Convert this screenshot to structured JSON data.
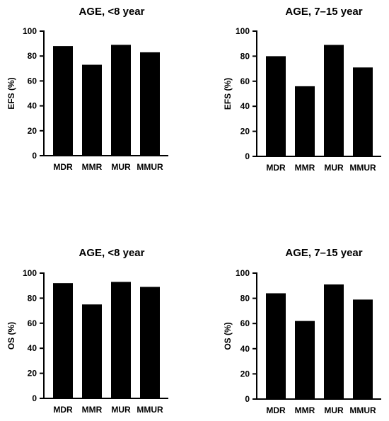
{
  "chart_data": [
    {
      "type": "bar",
      "title": "AGE, <8 year",
      "xlabel": "",
      "ylabel": "EFS (%)",
      "categories": [
        "MDR",
        "MMR",
        "MUR",
        "MMUR"
      ],
      "values": [
        88,
        73,
        89,
        83
      ],
      "ylim": [
        0,
        100
      ],
      "yticks": [
        "0",
        "20",
        "40",
        "60",
        "80",
        "100"
      ],
      "grid": false,
      "bar_color": "#000000"
    },
    {
      "type": "bar",
      "title": "AGE, 7–15 year",
      "xlabel": "",
      "ylabel": "EFS (%)",
      "categories": [
        "MDR",
        "MMR",
        "MUR",
        "MMUR"
      ],
      "values": [
        80,
        56,
        89,
        71
      ],
      "ylim": [
        0,
        100
      ],
      "yticks": [
        "0",
        "20",
        "40",
        "60",
        "80",
        "100"
      ],
      "grid": false,
      "bar_color": "#000000"
    },
    {
      "type": "bar",
      "title": "AGE, <8 year",
      "xlabel": "",
      "ylabel": "OS (%)",
      "categories": [
        "MDR",
        "MMR",
        "MUR",
        "MMUR"
      ],
      "values": [
        92,
        75,
        93,
        89
      ],
      "ylim": [
        0,
        100
      ],
      "yticks": [
        "0",
        "20",
        "40",
        "60",
        "80",
        "100"
      ],
      "grid": false,
      "bar_color": "#000000"
    },
    {
      "type": "bar",
      "title": "AGE, 7–15 year",
      "xlabel": "",
      "ylabel": "OS (%)",
      "categories": [
        "MDR",
        "MMR",
        "MUR",
        "MMUR"
      ],
      "values": [
        84,
        62,
        91,
        79
      ],
      "ylim": [
        0,
        100
      ],
      "yticks": [
        "0",
        "20",
        "40",
        "60",
        "80",
        "100"
      ],
      "grid": false,
      "bar_color": "#000000"
    }
  ]
}
